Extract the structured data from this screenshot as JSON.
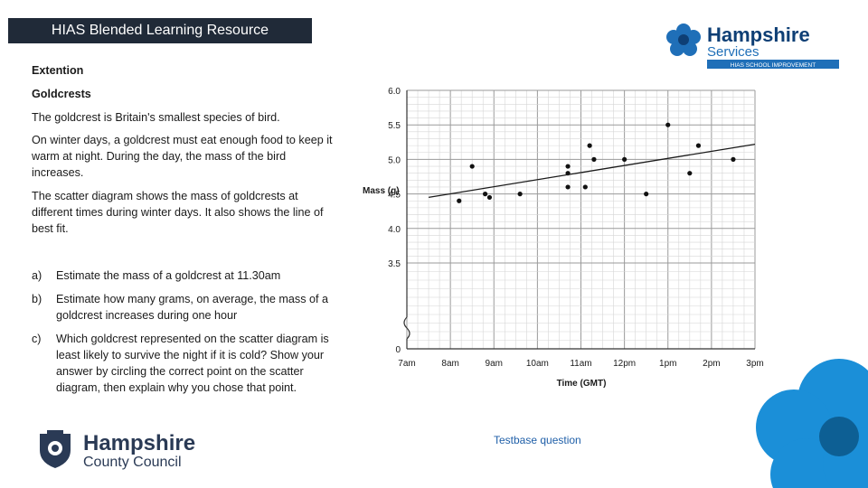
{
  "header": {
    "banner": "HIAS Blended Learning Resource"
  },
  "brand": {
    "line1": "Hampshire",
    "line2": "Services",
    "tag": "HIAS SCHOOL IMPROVEMENT"
  },
  "content": {
    "heading1": "Extention",
    "heading2": "Goldcrests",
    "p1": "The goldcrest is Britain's smallest species of bird.",
    "p2": "On winter days, a goldcrest must eat enough food to keep it warm at night. During the day, the mass of the bird increases.",
    "p3": "The scatter diagram shows the mass of goldcrests at different times during winter days. It also shows the line of best fit.",
    "questions": [
      {
        "label": "a)",
        "text": "Estimate the mass of a goldcrest at 11.30am"
      },
      {
        "label": "b)",
        "text": "Estimate how many grams, on average, the mass of a goldcrest increases during one hour"
      },
      {
        "label": "c)",
        "text": "Which goldcrest represented on the scatter diagram is least likely to survive the night if it is cold? Show your answer by circling the correct point on the scatter diagram, then explain why you chose that point."
      }
    ]
  },
  "chart_data": {
    "type": "scatter",
    "xlabel": "Time (GMT)",
    "ylabel": "Mass (g)",
    "xlim": [
      7,
      15
    ],
    "ylim": [
      3.5,
      6.0
    ],
    "ylim_note": "axis broken between 0 and 3.5",
    "x_ticks": [
      7,
      8,
      9,
      10,
      11,
      12,
      13,
      14,
      15
    ],
    "x_tick_labels": [
      "7am",
      "8am",
      "9am",
      "10am",
      "11am",
      "12pm",
      "1pm",
      "2pm",
      "3pm"
    ],
    "y_ticks": [
      3.5,
      4.0,
      4.5,
      5.0,
      5.5,
      6.0
    ],
    "y_tick_labels": [
      "3.5",
      "4.0",
      "4.5",
      "5.0",
      "5.5",
      "6.0"
    ],
    "y_zero_label": "0",
    "grid": true,
    "points": [
      {
        "x": 8.2,
        "y": 4.4
      },
      {
        "x": 8.5,
        "y": 4.9
      },
      {
        "x": 8.8,
        "y": 4.5
      },
      {
        "x": 8.9,
        "y": 4.45
      },
      {
        "x": 9.6,
        "y": 4.5
      },
      {
        "x": 10.7,
        "y": 4.9
      },
      {
        "x": 10.7,
        "y": 4.8
      },
      {
        "x": 10.7,
        "y": 4.6
      },
      {
        "x": 11.1,
        "y": 4.6
      },
      {
        "x": 11.2,
        "y": 5.2
      },
      {
        "x": 11.3,
        "y": 5.0
      },
      {
        "x": 12.0,
        "y": 5.0
      },
      {
        "x": 12.5,
        "y": 4.5
      },
      {
        "x": 13.0,
        "y": 5.5
      },
      {
        "x": 13.5,
        "y": 4.8
      },
      {
        "x": 13.7,
        "y": 5.2
      },
      {
        "x": 14.5,
        "y": 5.0
      }
    ],
    "best_fit": {
      "x1": 7.5,
      "y1": 4.45,
      "x2": 15.0,
      "y2": 5.22
    }
  },
  "footer": {
    "source": "Testbase question",
    "council_line1": "Hampshire",
    "council_line2": "County Council"
  },
  "colors": {
    "banner": "#202a38",
    "brand_blue": "#1f6fb8",
    "deco_blue": "#1b8fd8",
    "link": "#1f5fa8"
  }
}
